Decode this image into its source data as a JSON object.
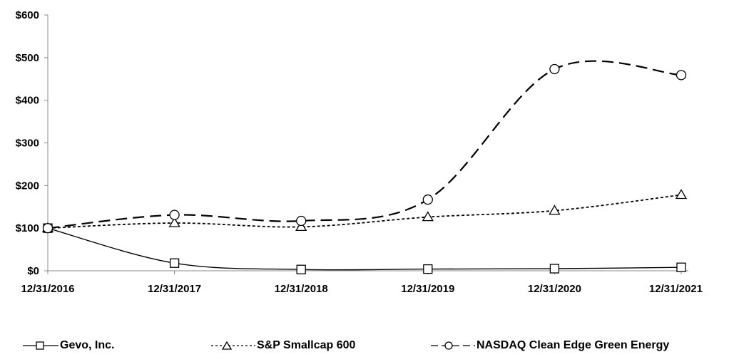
{
  "chart_data": {
    "type": "line",
    "categories": [
      "12/31/2016",
      "12/31/2017",
      "12/31/2018",
      "12/31/2019",
      "12/31/2020",
      "12/31/2021"
    ],
    "y_ticks": [
      "$0",
      "$100",
      "$200",
      "$300",
      "$400",
      "$500",
      "$600"
    ],
    "ylim": [
      0,
      600
    ],
    "grid": false,
    "legend_position": "bottom",
    "series": [
      {
        "name": "Gevo, Inc.",
        "marker": "square",
        "dash": "solid",
        "values": [
          100,
          18,
          3,
          4,
          5,
          8
        ]
      },
      {
        "name": "S&P Smallcap 600",
        "marker": "triangle",
        "dash": "dotted",
        "values": [
          100,
          112,
          103,
          126,
          141,
          178
        ]
      },
      {
        "name": "NASDAQ Clean Edge Green Energy",
        "marker": "circle",
        "dash": "dashed",
        "values": [
          100,
          131,
          117,
          167,
          473,
          459
        ]
      }
    ]
  }
}
